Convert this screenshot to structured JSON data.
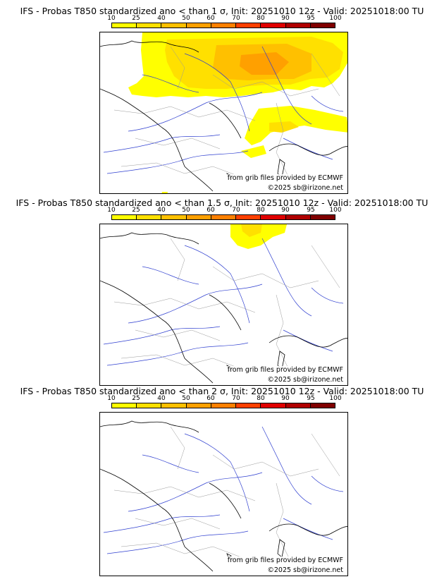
{
  "legend": {
    "ticks": [
      "10",
      "25",
      "40",
      "50",
      "60",
      "70",
      "80",
      "90",
      "95",
      "100"
    ],
    "colors": [
      "#ffff00",
      "#ffe000",
      "#ffc000",
      "#ffa000",
      "#ff8000",
      "#ff4000",
      "#e00000",
      "#b00000",
      "#800000",
      "#500000"
    ]
  },
  "panels": [
    {
      "title": "IFS - Probas T850  standardized ano < than 1 σ, Init: 20251010 12z - Valid: 20251018:00 TU",
      "credit_source": "from grib files provided by ECMWF",
      "credit_copyright": "©2025 sb@irizone.net",
      "probability_area": "large"
    },
    {
      "title": "IFS - Probas T850  standardized ano < than 1.5 σ, Init: 20251010 12z - Valid: 20251018:00 TU",
      "credit_source": "from grib files provided by ECMWF",
      "credit_copyright": "©2025 sb@irizone.net",
      "probability_area": "small"
    },
    {
      "title": "IFS - Probas T850  standardized ano < than 2 σ, Init: 20251010 12z - Valid: 20251018:00 TU",
      "credit_source": "from grib files provided by ECMWF",
      "credit_copyright": "©2025 sb@irizone.net",
      "probability_area": "none"
    }
  ]
}
